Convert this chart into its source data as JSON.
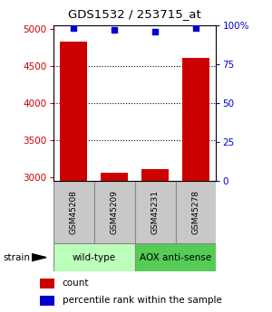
{
  "title": "GDS1532 / 253715_at",
  "samples": [
    "GSM45208",
    "GSM45209",
    "GSM45231",
    "GSM45278"
  ],
  "counts": [
    4820,
    3060,
    3110,
    4610
  ],
  "percentiles": [
    98,
    97,
    96,
    98
  ],
  "ylim_left": [
    2950,
    5050
  ],
  "ylim_right": [
    0,
    100
  ],
  "yticks_left": [
    3000,
    3500,
    4000,
    4500,
    5000
  ],
  "yticks_right": [
    0,
    25,
    50,
    75,
    100
  ],
  "yticklabels_right": [
    "0",
    "25",
    "50",
    "75",
    "100%"
  ],
  "bar_color": "#cc0000",
  "dot_color": "#0000cc",
  "groups": [
    {
      "label": "wild-type",
      "indices": [
        0,
        1
      ],
      "color": "#bbffbb"
    },
    {
      "label": "AOX anti-sense",
      "indices": [
        2,
        3
      ],
      "color": "#55cc55"
    }
  ],
  "strain_label": "strain",
  "left_tick_color": "#cc0000",
  "right_tick_color": "#0000cc",
  "bar_bottom": 2950,
  "dotted_gridlines": [
    3500,
    4000,
    4500
  ],
  "box_color": "#c8c8c8",
  "box_edge_color": "#888888"
}
